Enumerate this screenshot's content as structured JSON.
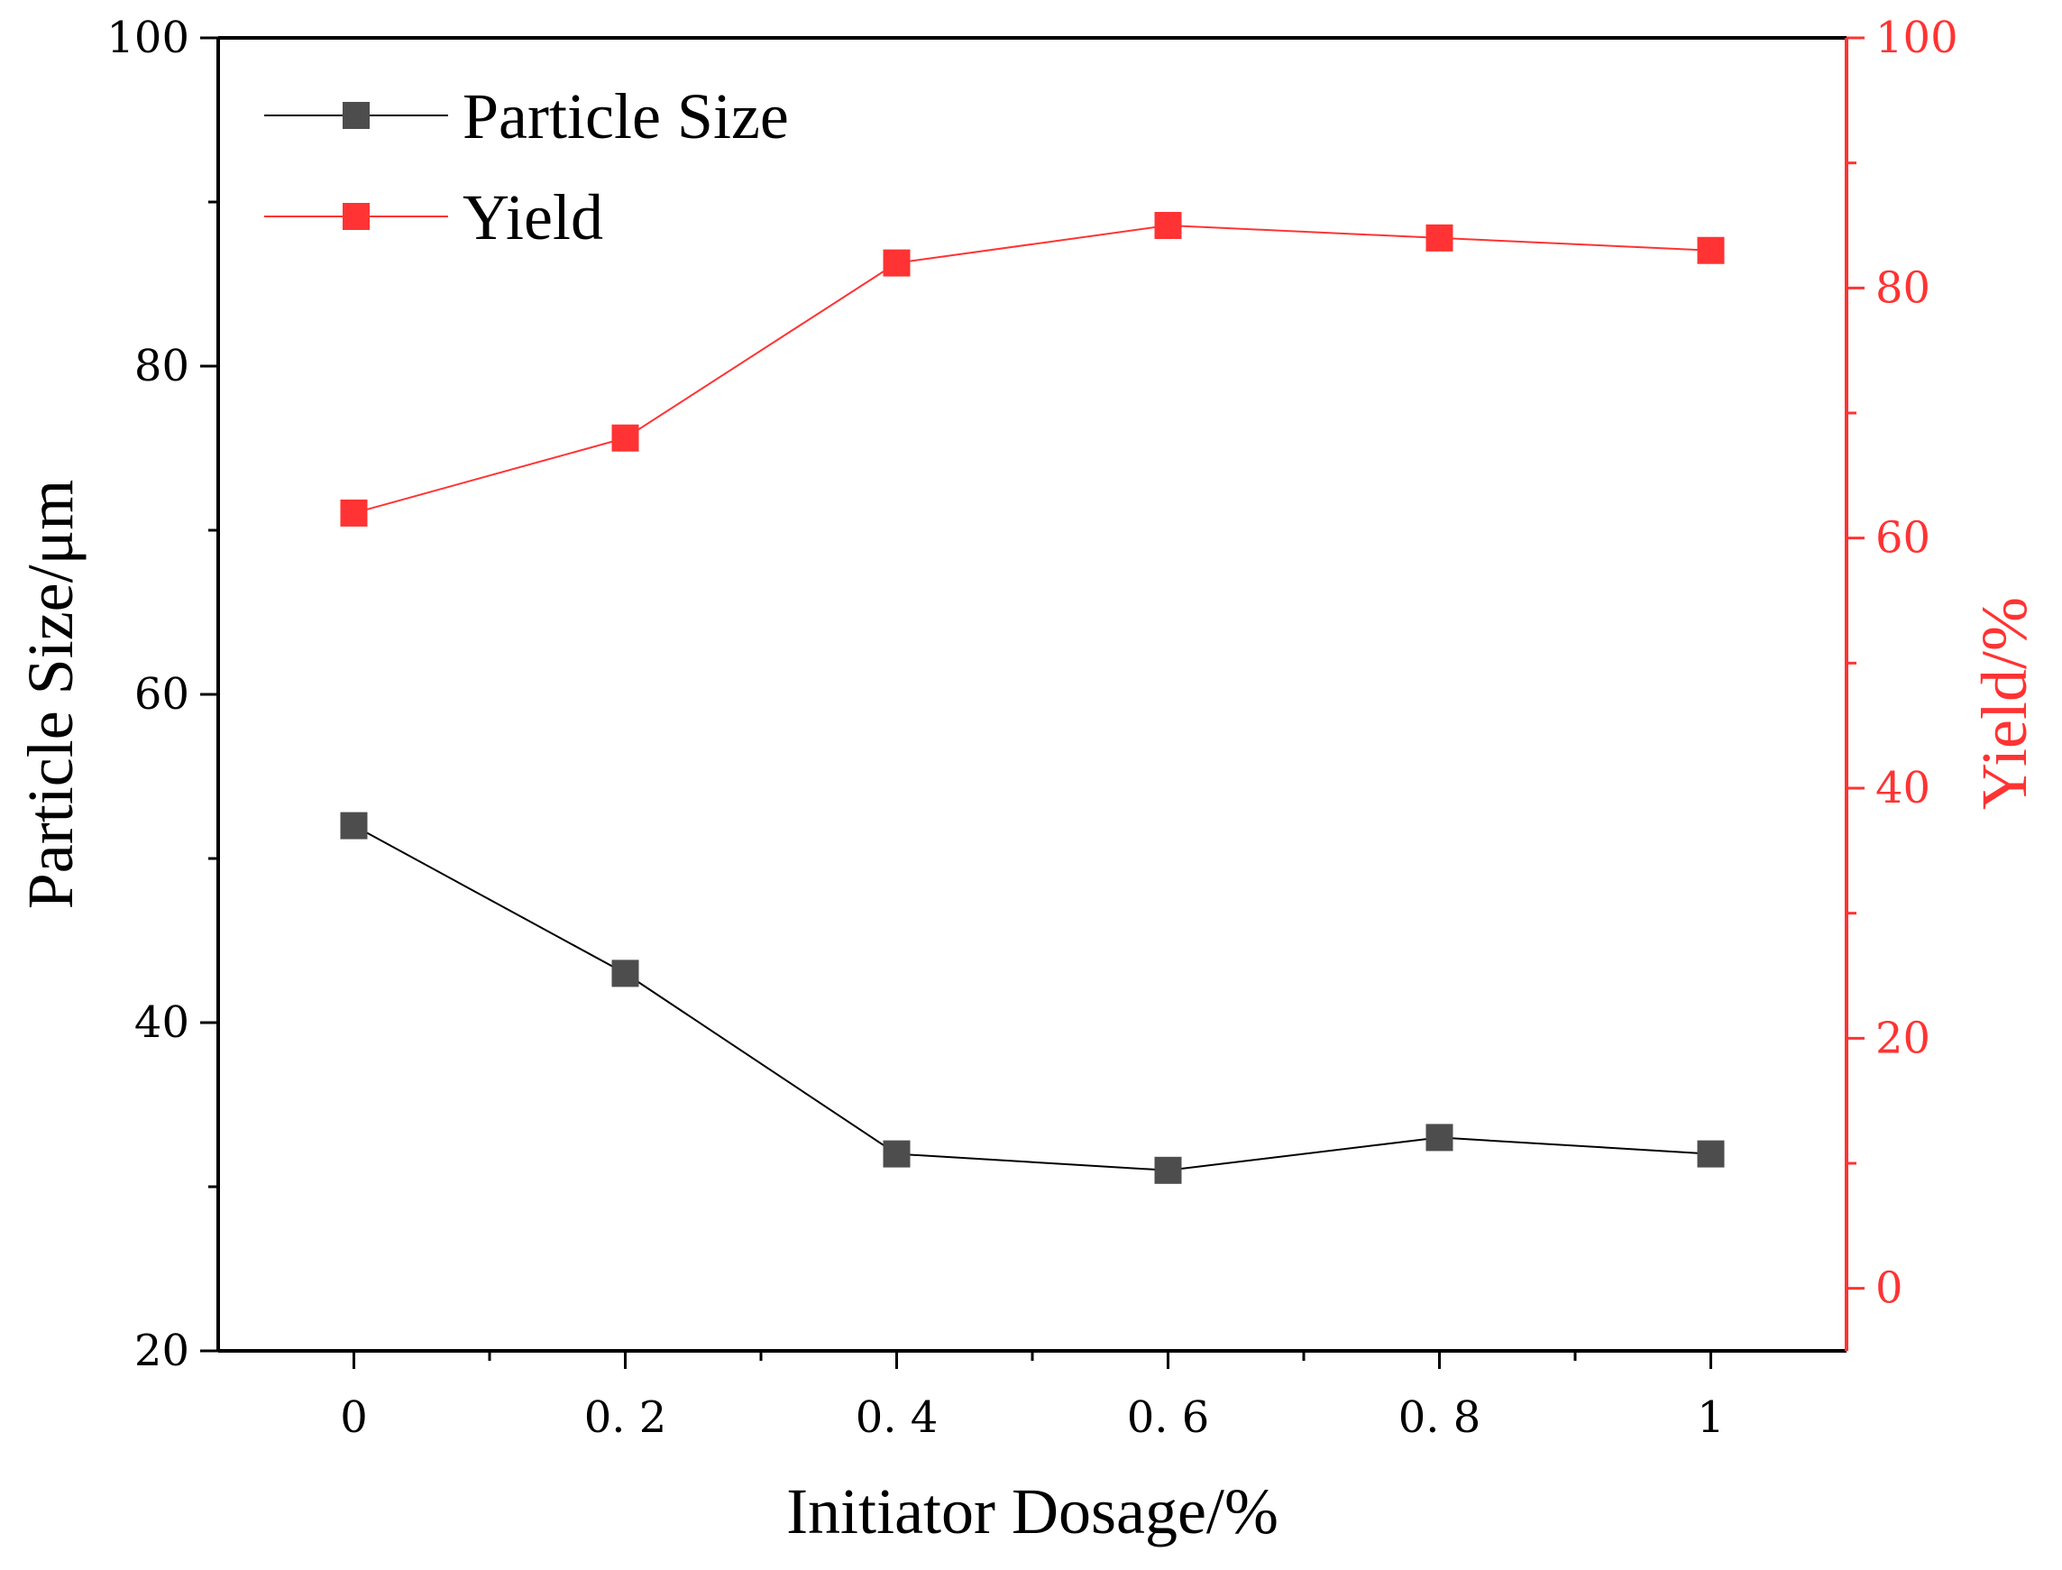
{
  "chart_data": {
    "type": "line",
    "title": "",
    "xlabel": "Initiator Dosage/%",
    "ylabel_left": "Particle Size/μm",
    "ylabel_right": "Yield/%",
    "x": [
      0,
      0.2,
      0.4,
      0.6,
      0.8,
      1
    ],
    "x_tick_labels": [
      "0",
      "0. 2",
      "0. 4",
      "0. 6",
      "0. 8",
      "1"
    ],
    "xlim": [
      -0.1,
      1.1
    ],
    "ylim_left": [
      20,
      100
    ],
    "ylim_right": [
      -5,
      100
    ],
    "y_ticks_left": [
      "20",
      "40",
      "60",
      "80",
      "100"
    ],
    "y_ticks_right": [
      "0",
      "20",
      "40",
      "60",
      "80",
      "100"
    ],
    "grid": false,
    "legend_position": "top-left",
    "series": [
      {
        "name": "Particle Size",
        "axis": "left",
        "color": "#4d4d4d",
        "line_color": "#000000",
        "marker": "square",
        "values": [
          52,
          43,
          32,
          31,
          33,
          32
        ]
      },
      {
        "name": "Yield",
        "axis": "right",
        "color": "#ff3333",
        "line_color": "#ff3333",
        "marker": "square",
        "values": [
          62,
          68,
          82,
          85,
          84,
          83
        ]
      }
    ],
    "colors": {
      "left_axis": "#000000",
      "right_axis": "#ff3333"
    }
  }
}
